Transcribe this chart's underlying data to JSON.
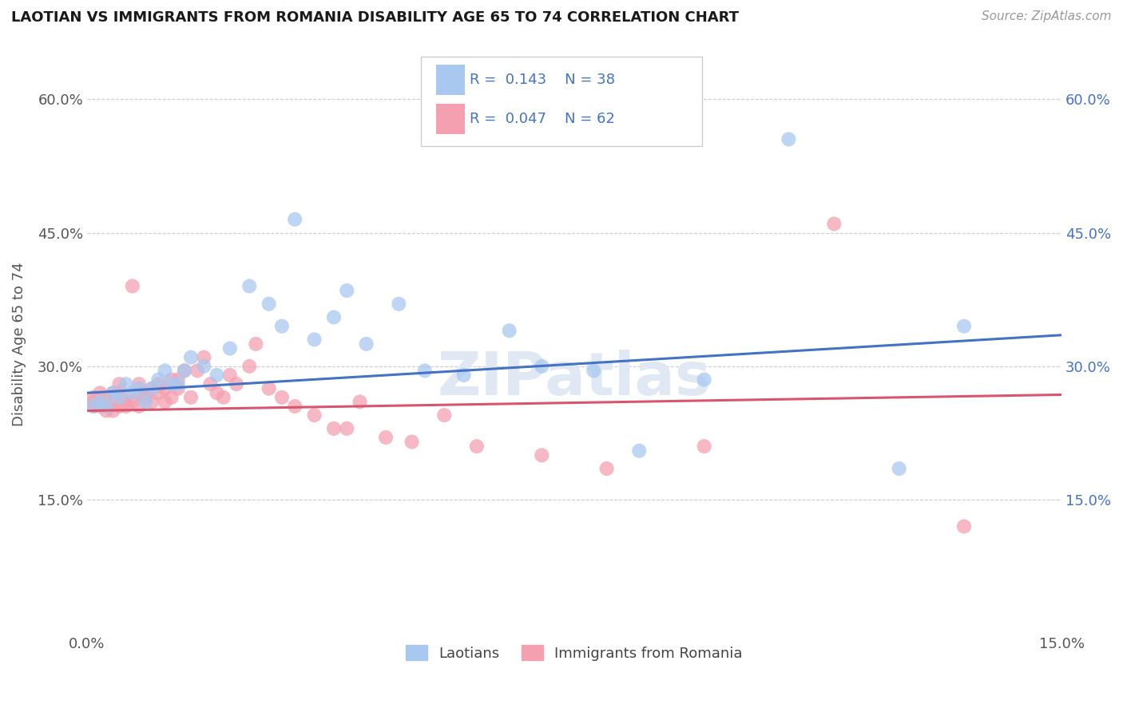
{
  "title": "LAOTIAN VS IMMIGRANTS FROM ROMANIA DISABILITY AGE 65 TO 74 CORRELATION CHART",
  "source_text": "Source: ZipAtlas.com",
  "ylabel": "Disability Age 65 to 74",
  "xmin": 0.0,
  "xmax": 0.15,
  "ymin": 0.0,
  "ymax": 0.65,
  "x_ticks": [
    0.0,
    0.15
  ],
  "x_tick_labels": [
    "0.0%",
    "15.0%"
  ],
  "y_ticks": [
    0.15,
    0.3,
    0.45,
    0.6
  ],
  "y_tick_labels": [
    "15.0%",
    "30.0%",
    "45.0%",
    "60.0%"
  ],
  "legend_labels": [
    "Laotians",
    "Immigrants from Romania"
  ],
  "laotian_R": 0.143,
  "laotian_N": 38,
  "romania_R": 0.047,
  "romania_N": 62,
  "laotian_color": "#a8c8f0",
  "romania_color": "#f4a0b0",
  "laotian_line_color": "#4472c4",
  "romania_line_color": "#d9546e",
  "lao_line_y0": 0.27,
  "lao_line_y1": 0.335,
  "rom_line_y0": 0.25,
  "rom_line_y1": 0.268,
  "laotian_x": [
    0.001,
    0.002,
    0.003,
    0.004,
    0.005,
    0.006,
    0.007,
    0.008,
    0.009,
    0.01,
    0.011,
    0.012,
    0.013,
    0.014,
    0.015,
    0.016,
    0.018,
    0.02,
    0.022,
    0.025,
    0.028,
    0.03,
    0.032,
    0.035,
    0.038,
    0.04,
    0.043,
    0.048,
    0.052,
    0.058,
    0.065,
    0.07,
    0.078,
    0.085,
    0.095,
    0.108,
    0.125,
    0.135
  ],
  "laotian_y": [
    0.255,
    0.26,
    0.255,
    0.27,
    0.265,
    0.28,
    0.27,
    0.275,
    0.26,
    0.275,
    0.285,
    0.295,
    0.28,
    0.28,
    0.295,
    0.31,
    0.3,
    0.29,
    0.32,
    0.39,
    0.37,
    0.345,
    0.465,
    0.33,
    0.355,
    0.385,
    0.325,
    0.37,
    0.295,
    0.29,
    0.34,
    0.3,
    0.295,
    0.205,
    0.285,
    0.555,
    0.185,
    0.345
  ],
  "romania_x": [
    0.001,
    0.001,
    0.001,
    0.002,
    0.002,
    0.002,
    0.003,
    0.003,
    0.003,
    0.004,
    0.004,
    0.004,
    0.005,
    0.005,
    0.005,
    0.006,
    0.006,
    0.006,
    0.007,
    0.007,
    0.008,
    0.008,
    0.008,
    0.009,
    0.009,
    0.01,
    0.01,
    0.011,
    0.011,
    0.012,
    0.012,
    0.013,
    0.013,
    0.014,
    0.014,
    0.015,
    0.016,
    0.017,
    0.018,
    0.019,
    0.02,
    0.021,
    0.022,
    0.023,
    0.025,
    0.026,
    0.028,
    0.03,
    0.032,
    0.035,
    0.038,
    0.04,
    0.042,
    0.046,
    0.05,
    0.055,
    0.06,
    0.07,
    0.08,
    0.095,
    0.115,
    0.135
  ],
  "romania_y": [
    0.255,
    0.26,
    0.265,
    0.255,
    0.27,
    0.26,
    0.255,
    0.25,
    0.265,
    0.25,
    0.27,
    0.26,
    0.255,
    0.27,
    0.28,
    0.26,
    0.255,
    0.265,
    0.39,
    0.26,
    0.255,
    0.27,
    0.28,
    0.265,
    0.27,
    0.26,
    0.275,
    0.27,
    0.28,
    0.26,
    0.275,
    0.285,
    0.265,
    0.285,
    0.275,
    0.295,
    0.265,
    0.295,
    0.31,
    0.28,
    0.27,
    0.265,
    0.29,
    0.28,
    0.3,
    0.325,
    0.275,
    0.265,
    0.255,
    0.245,
    0.23,
    0.23,
    0.26,
    0.22,
    0.215,
    0.245,
    0.21,
    0.2,
    0.185,
    0.21,
    0.46,
    0.12
  ]
}
